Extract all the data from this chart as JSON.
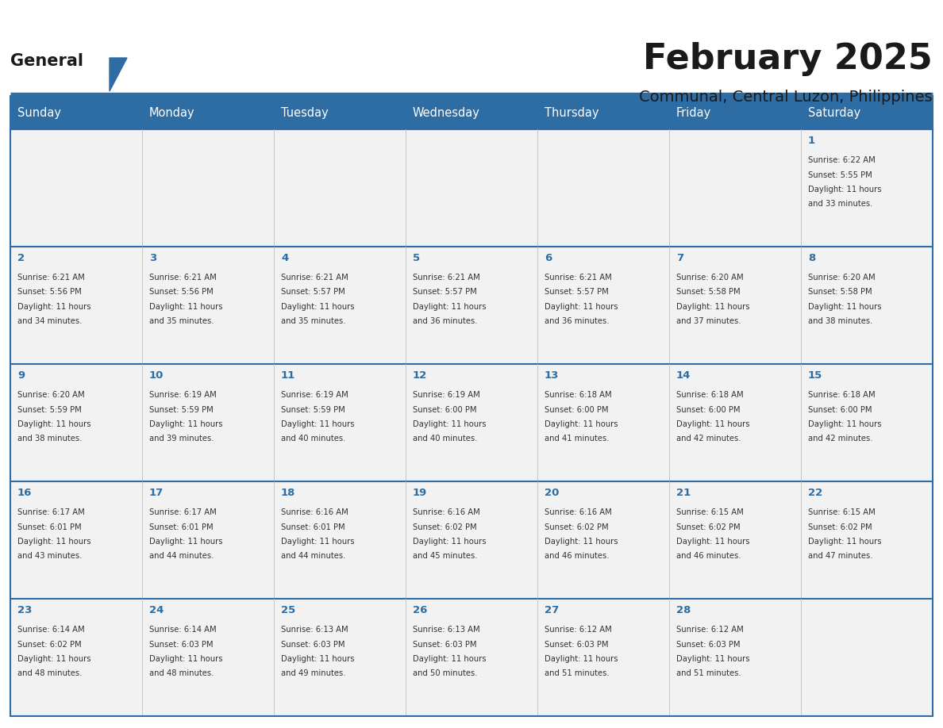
{
  "title": "February 2025",
  "subtitle": "Communal, Central Luzon, Philippines",
  "header_bg": "#2E6DA4",
  "header_text": "#FFFFFF",
  "cell_bg": "#F2F2F2",
  "border_color": "#2E6DA4",
  "title_color": "#1a1a1a",
  "subtitle_color": "#1a1a1a",
  "day_num_color": "#2E6DA4",
  "cell_text_color": "#333333",
  "day_headers": [
    "Sunday",
    "Monday",
    "Tuesday",
    "Wednesday",
    "Thursday",
    "Friday",
    "Saturday"
  ],
  "weeks": [
    [
      {
        "day": "",
        "info": ""
      },
      {
        "day": "",
        "info": ""
      },
      {
        "day": "",
        "info": ""
      },
      {
        "day": "",
        "info": ""
      },
      {
        "day": "",
        "info": ""
      },
      {
        "day": "",
        "info": ""
      },
      {
        "day": "1",
        "info": "Sunrise: 6:22 AM\nSunset: 5:55 PM\nDaylight: 11 hours\nand 33 minutes."
      }
    ],
    [
      {
        "day": "2",
        "info": "Sunrise: 6:21 AM\nSunset: 5:56 PM\nDaylight: 11 hours\nand 34 minutes."
      },
      {
        "day": "3",
        "info": "Sunrise: 6:21 AM\nSunset: 5:56 PM\nDaylight: 11 hours\nand 35 minutes."
      },
      {
        "day": "4",
        "info": "Sunrise: 6:21 AM\nSunset: 5:57 PM\nDaylight: 11 hours\nand 35 minutes."
      },
      {
        "day": "5",
        "info": "Sunrise: 6:21 AM\nSunset: 5:57 PM\nDaylight: 11 hours\nand 36 minutes."
      },
      {
        "day": "6",
        "info": "Sunrise: 6:21 AM\nSunset: 5:57 PM\nDaylight: 11 hours\nand 36 minutes."
      },
      {
        "day": "7",
        "info": "Sunrise: 6:20 AM\nSunset: 5:58 PM\nDaylight: 11 hours\nand 37 minutes."
      },
      {
        "day": "8",
        "info": "Sunrise: 6:20 AM\nSunset: 5:58 PM\nDaylight: 11 hours\nand 38 minutes."
      }
    ],
    [
      {
        "day": "9",
        "info": "Sunrise: 6:20 AM\nSunset: 5:59 PM\nDaylight: 11 hours\nand 38 minutes."
      },
      {
        "day": "10",
        "info": "Sunrise: 6:19 AM\nSunset: 5:59 PM\nDaylight: 11 hours\nand 39 minutes."
      },
      {
        "day": "11",
        "info": "Sunrise: 6:19 AM\nSunset: 5:59 PM\nDaylight: 11 hours\nand 40 minutes."
      },
      {
        "day": "12",
        "info": "Sunrise: 6:19 AM\nSunset: 6:00 PM\nDaylight: 11 hours\nand 40 minutes."
      },
      {
        "day": "13",
        "info": "Sunrise: 6:18 AM\nSunset: 6:00 PM\nDaylight: 11 hours\nand 41 minutes."
      },
      {
        "day": "14",
        "info": "Sunrise: 6:18 AM\nSunset: 6:00 PM\nDaylight: 11 hours\nand 42 minutes."
      },
      {
        "day": "15",
        "info": "Sunrise: 6:18 AM\nSunset: 6:00 PM\nDaylight: 11 hours\nand 42 minutes."
      }
    ],
    [
      {
        "day": "16",
        "info": "Sunrise: 6:17 AM\nSunset: 6:01 PM\nDaylight: 11 hours\nand 43 minutes."
      },
      {
        "day": "17",
        "info": "Sunrise: 6:17 AM\nSunset: 6:01 PM\nDaylight: 11 hours\nand 44 minutes."
      },
      {
        "day": "18",
        "info": "Sunrise: 6:16 AM\nSunset: 6:01 PM\nDaylight: 11 hours\nand 44 minutes."
      },
      {
        "day": "19",
        "info": "Sunrise: 6:16 AM\nSunset: 6:02 PM\nDaylight: 11 hours\nand 45 minutes."
      },
      {
        "day": "20",
        "info": "Sunrise: 6:16 AM\nSunset: 6:02 PM\nDaylight: 11 hours\nand 46 minutes."
      },
      {
        "day": "21",
        "info": "Sunrise: 6:15 AM\nSunset: 6:02 PM\nDaylight: 11 hours\nand 46 minutes."
      },
      {
        "day": "22",
        "info": "Sunrise: 6:15 AM\nSunset: 6:02 PM\nDaylight: 11 hours\nand 47 minutes."
      }
    ],
    [
      {
        "day": "23",
        "info": "Sunrise: 6:14 AM\nSunset: 6:02 PM\nDaylight: 11 hours\nand 48 minutes."
      },
      {
        "day": "24",
        "info": "Sunrise: 6:14 AM\nSunset: 6:03 PM\nDaylight: 11 hours\nand 48 minutes."
      },
      {
        "day": "25",
        "info": "Sunrise: 6:13 AM\nSunset: 6:03 PM\nDaylight: 11 hours\nand 49 minutes."
      },
      {
        "day": "26",
        "info": "Sunrise: 6:13 AM\nSunset: 6:03 PM\nDaylight: 11 hours\nand 50 minutes."
      },
      {
        "day": "27",
        "info": "Sunrise: 6:12 AM\nSunset: 6:03 PM\nDaylight: 11 hours\nand 51 minutes."
      },
      {
        "day": "28",
        "info": "Sunrise: 6:12 AM\nSunset: 6:03 PM\nDaylight: 11 hours\nand 51 minutes."
      },
      {
        "day": "",
        "info": ""
      }
    ]
  ],
  "logo_general_color": "#1a1a1a",
  "logo_blue_color": "#2E6DA4",
  "logo_triangle_color": "#2E6DA4"
}
